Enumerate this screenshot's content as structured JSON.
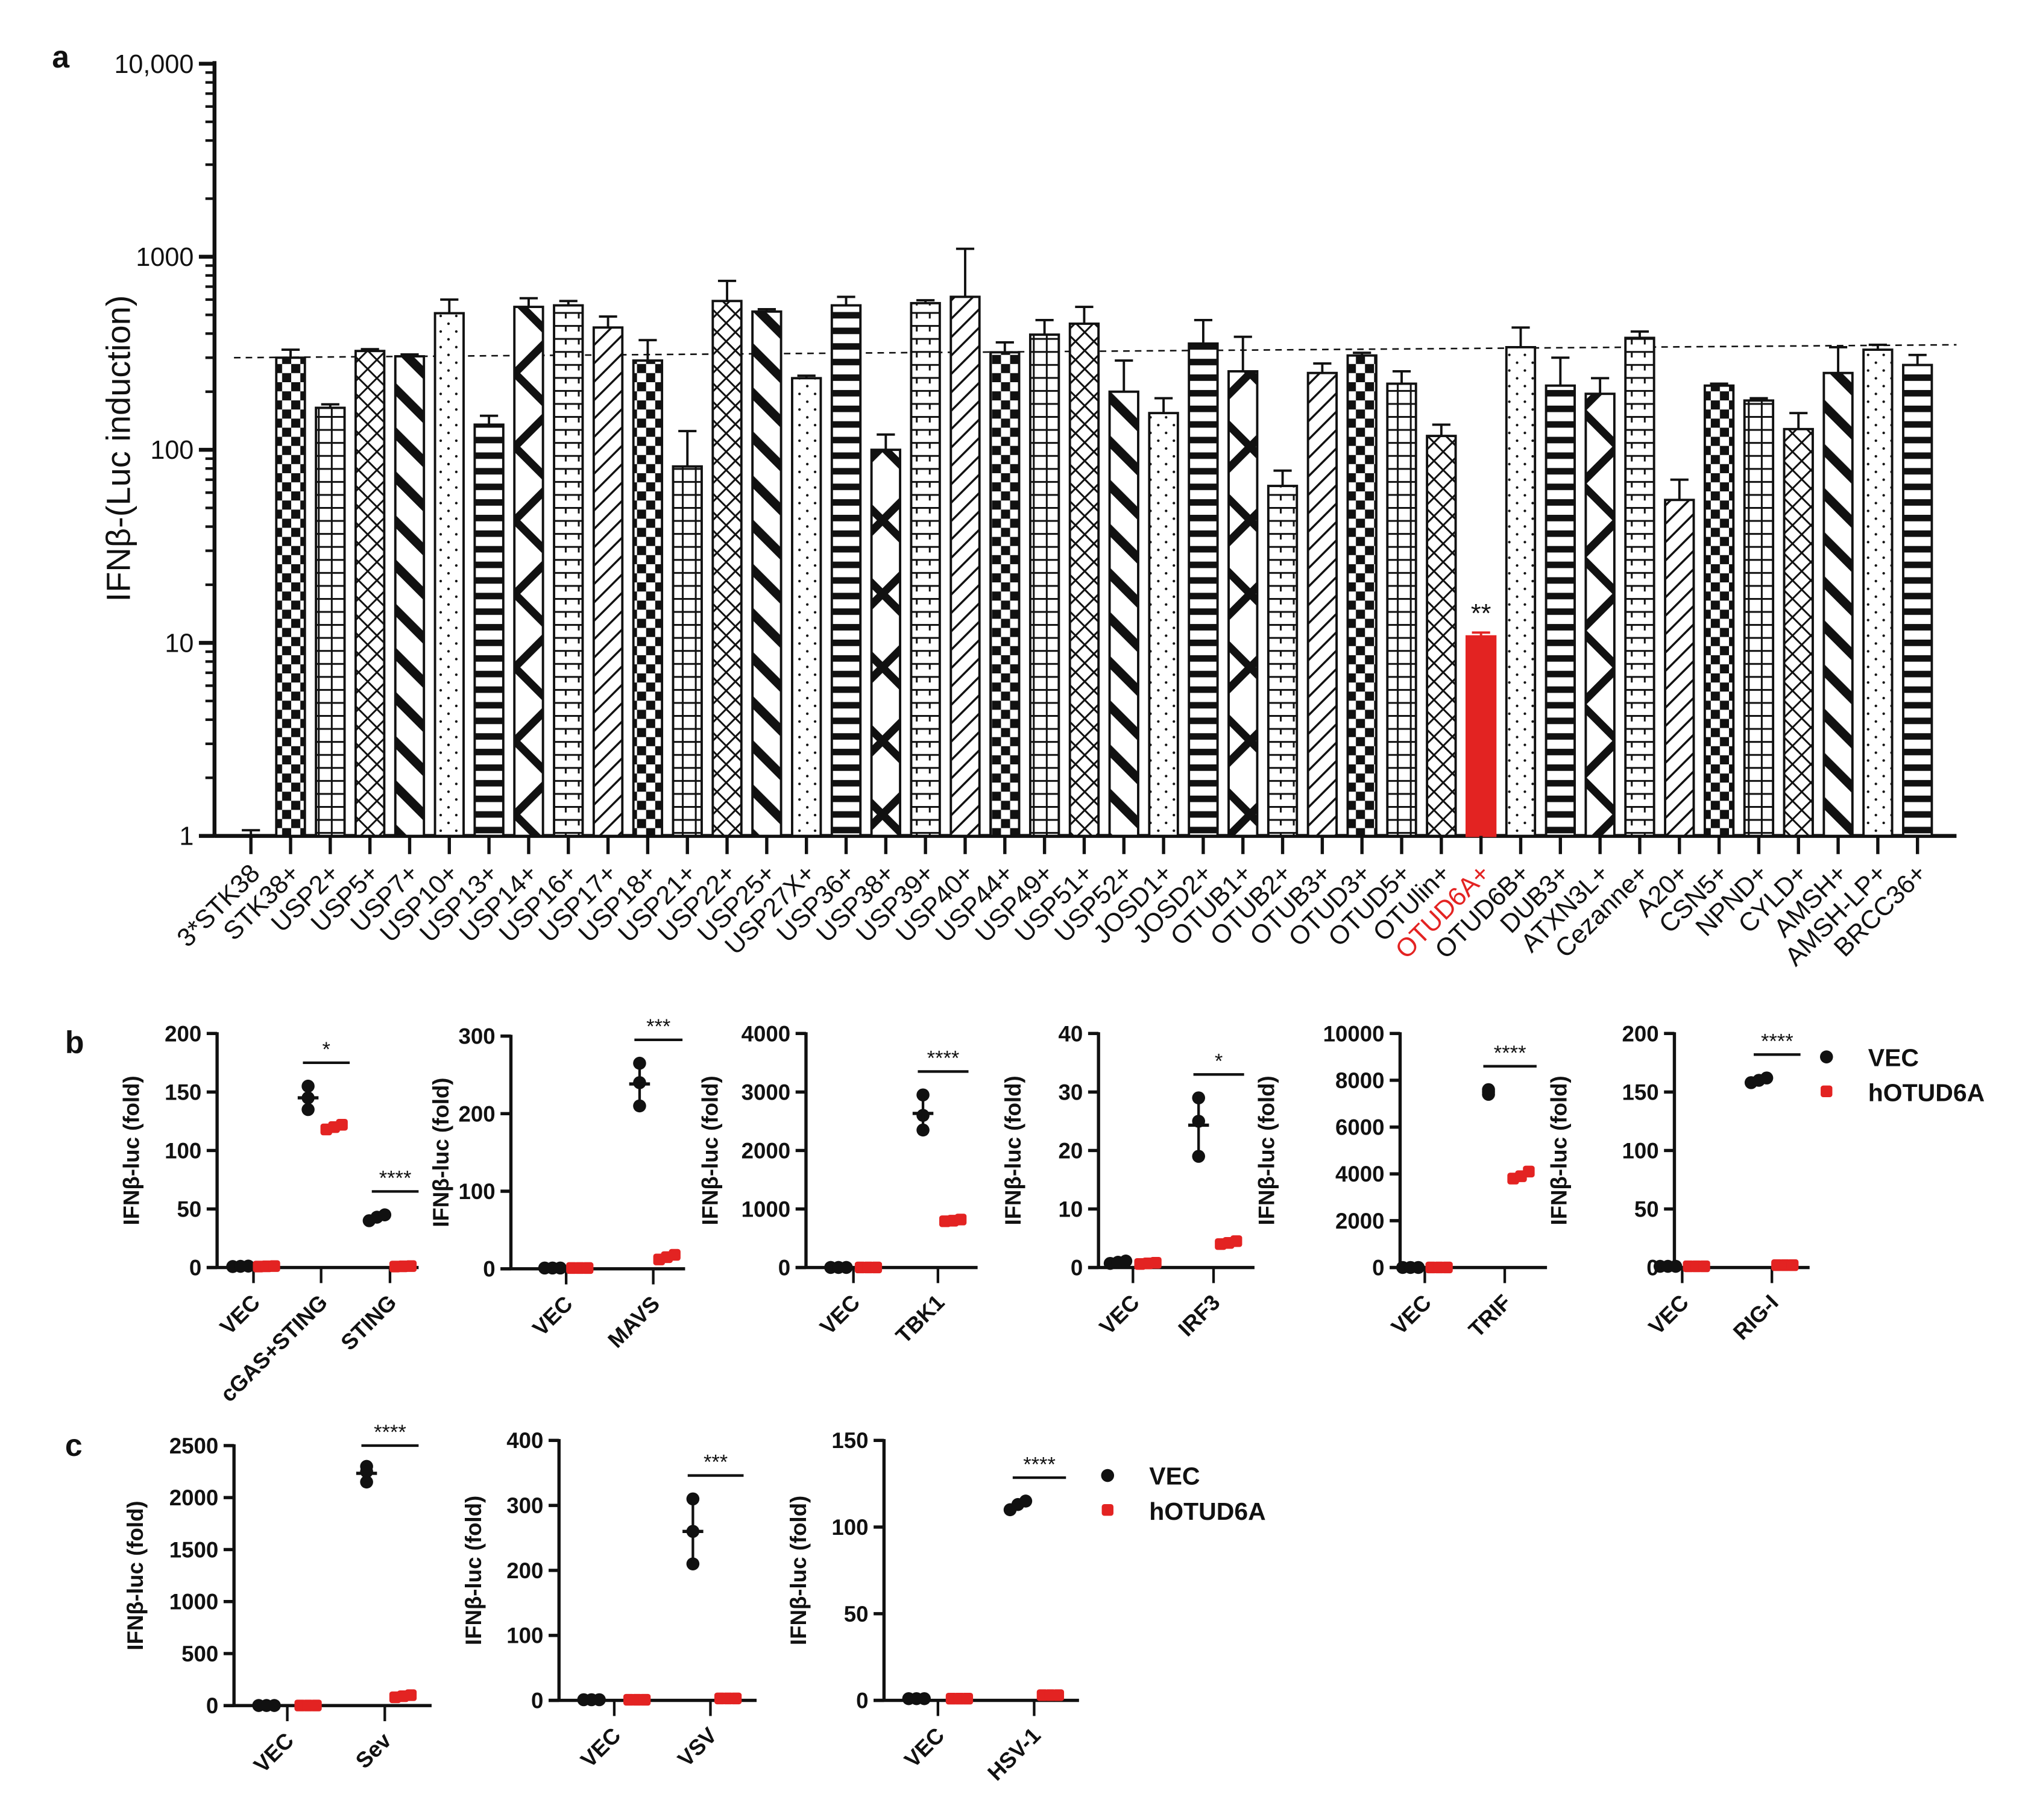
{
  "panel_labels": {
    "a": "a",
    "b": "b",
    "c": "c"
  },
  "chart_data": [
    {
      "id": "a",
      "type": "bar",
      "yscale": "log",
      "ylim": [
        1,
        10000
      ],
      "ylabel": "IFNβ-(Luc induction)",
      "ytick_values": [
        1,
        10,
        100,
        1000,
        10000
      ],
      "ytick_labels": [
        "1",
        "10",
        "100",
        "1000",
        "10,000"
      ],
      "categories": [
        "3*STK38",
        "STK38+",
        "USP2+",
        "USP5+",
        "USP7+",
        "USP10+",
        "USP13+",
        "USP14+",
        "USP16+",
        "USP17+",
        "USP18+",
        "USP21+",
        "USP22+",
        "USP25+",
        "USP27X+",
        "USP36+",
        "USP38+",
        "USP39+",
        "USP40+",
        "USP44+",
        "USP49+",
        "USP51+",
        "USP52+",
        "JOSD1+",
        "JOSD2+",
        "OTUB1+",
        "OTUB2+",
        "OTUB3+",
        "OTUD3+",
        "OTUD5+",
        "OTUlin+",
        "OTUD6A+",
        "OTUD6B+",
        "DUB3+",
        "ATXN3L+",
        "Cezanne+",
        "A20+",
        "CSN5+",
        "NPND+",
        "CYLD+",
        "AMSH+",
        "AMSH-LP+",
        "BRCC36+"
      ],
      "values": [
        1,
        300,
        165,
        325,
        305,
        510,
        135,
        550,
        560,
        430,
        290,
        82,
        590,
        520,
        235,
        560,
        100,
        575,
        620,
        320,
        395,
        450,
        200,
        155,
        355,
        255,
        65,
        250,
        308,
        220,
        118,
        10.8,
        340,
        215,
        195,
        380,
        55,
        215,
        180,
        128,
        250,
        330,
        275
      ],
      "error_upper": [
        1.07,
        330,
        172,
        332,
        312,
        600,
        150,
        610,
        590,
        490,
        370,
        125,
        750,
        535,
        242,
        620,
        120,
        595,
        1100,
        360,
        470,
        550,
        290,
        185,
        470,
        385,
        78,
        280,
        318,
        255,
        135,
        11.3,
        430,
        300,
        235,
        410,
        70,
        220,
        185,
        155,
        340,
        350,
        310
      ],
      "highlight_category": "OTUD6A+",
      "highlight_color": "#e32322",
      "annotations": [
        {
          "category": "OTUD6A+",
          "text": "**"
        }
      ],
      "reference_line": {
        "style": "dashed",
        "from_value": 300,
        "to_value": 350
      }
    },
    {
      "id": "b1",
      "type": "scatter",
      "ylabel": "IFNβ-luc (fold)",
      "ylim": [
        0,
        200
      ],
      "ytick_labels": [
        "0",
        "50",
        "100",
        "150",
        "200"
      ],
      "ytick_values": [
        0,
        50,
        100,
        150,
        200
      ],
      "groups": [
        {
          "label": "VEC",
          "VEC": [
            0.8,
            1,
            1.2
          ],
          "hOTUD6A": [
            0.8,
            1,
            1.2
          ],
          "sig": ""
        },
        {
          "label": "cGAS+STING",
          "VEC": [
            135,
            145,
            155
          ],
          "hOTUD6A": [
            118,
            120,
            122
          ],
          "sig": "*"
        },
        {
          "label": "STING",
          "VEC": [
            40,
            43,
            45
          ],
          "hOTUD6A": [
            0.8,
            1,
            1.2
          ],
          "sig": "****"
        }
      ]
    },
    {
      "id": "b2",
      "type": "scatter",
      "ylabel": "IFNβ-luc (fold)",
      "ylim": [
        0,
        300
      ],
      "ytick_labels": [
        "0",
        "100",
        "200",
        "300"
      ],
      "ytick_values": [
        0,
        100,
        200,
        300
      ],
      "groups": [
        {
          "label": "VEC",
          "VEC": [
            1,
            1,
            1
          ],
          "hOTUD6A": [
            1,
            1,
            1
          ],
          "sig": ""
        },
        {
          "label": "MAVS",
          "VEC": [
            210,
            240,
            265
          ],
          "hOTUD6A": [
            12,
            15,
            18
          ],
          "sig": "***"
        }
      ]
    },
    {
      "id": "b3",
      "type": "scatter",
      "ylabel": "IFNβ-luc (fold)",
      "ylim": [
        0,
        4000
      ],
      "ytick_labels": [
        "0",
        "1000",
        "2000",
        "3000",
        "4000"
      ],
      "ytick_values": [
        0,
        1000,
        2000,
        3000,
        4000
      ],
      "groups": [
        {
          "label": "VEC",
          "VEC": [
            1,
            1,
            1
          ],
          "hOTUD6A": [
            1,
            1,
            1
          ],
          "sig": ""
        },
        {
          "label": "TBK1",
          "VEC": [
            2350,
            2600,
            2950
          ],
          "hOTUD6A": [
            790,
            800,
            820
          ],
          "sig": "****"
        }
      ]
    },
    {
      "id": "b4",
      "type": "scatter",
      "ylabel": "IFNβ-luc (fold)",
      "ylim": [
        0,
        40
      ],
      "ytick_labels": [
        "0",
        "10",
        "20",
        "30",
        "40"
      ],
      "ytick_values": [
        0,
        10,
        20,
        30,
        40
      ],
      "groups": [
        {
          "label": "VEC",
          "VEC": [
            0.7,
            0.9,
            1.1
          ],
          "hOTUD6A": [
            0.6,
            0.7,
            0.8
          ],
          "sig": ""
        },
        {
          "label": "IRF3",
          "VEC": [
            19,
            25,
            29
          ],
          "hOTUD6A": [
            4,
            4.2,
            4.5
          ],
          "sig": "*"
        }
      ]
    },
    {
      "id": "b5",
      "type": "scatter",
      "ylabel": "IFNβ-luc (fold)",
      "ylim": [
        0,
        10000
      ],
      "ytick_labels": [
        "0",
        "2000",
        "4000",
        "6000",
        "8000",
        "10000"
      ],
      "ytick_values": [
        0,
        2000,
        4000,
        6000,
        8000,
        10000
      ],
      "groups": [
        {
          "label": "VEC",
          "VEC": [
            1,
            1,
            1
          ],
          "hOTUD6A": [
            1,
            1,
            1
          ],
          "sig": ""
        },
        {
          "label": "TRIF",
          "VEC": [
            7400,
            7500,
            7600
          ],
          "hOTUD6A": [
            3800,
            3900,
            4100
          ],
          "sig": "****"
        }
      ]
    },
    {
      "id": "b6",
      "type": "scatter",
      "ylabel": "IFNβ-luc (fold)",
      "ylim": [
        0,
        200
      ],
      "ytick_labels": [
        "0",
        "50",
        "100",
        "150",
        "200"
      ],
      "ytick_values": [
        0,
        50,
        100,
        150,
        200
      ],
      "groups": [
        {
          "label": "VEC",
          "VEC": [
            1,
            1,
            1
          ],
          "hOTUD6A": [
            1,
            1,
            1
          ],
          "sig": ""
        },
        {
          "label": "RIG-I",
          "VEC": [
            158,
            160,
            162
          ],
          "hOTUD6A": [
            2,
            2,
            2
          ],
          "sig": "****"
        }
      ],
      "legend": {
        "entries": [
          "VEC",
          "hOTUD6A"
        ],
        "placement": "right"
      }
    },
    {
      "id": "c1",
      "type": "scatter",
      "ylabel": "IFNβ-luc (fold)",
      "ylim": [
        0,
        2500
      ],
      "ytick_labels": [
        "0",
        "500",
        "1000",
        "1500",
        "2000",
        "2500"
      ],
      "ytick_values": [
        0,
        500,
        1000,
        1500,
        2000,
        2500
      ],
      "groups": [
        {
          "label": "VEC",
          "VEC": [
            1,
            1,
            1
          ],
          "hOTUD6A": [
            1,
            1,
            1
          ],
          "sig": ""
        },
        {
          "label": "Sev",
          "VEC": [
            2150,
            2250,
            2300
          ],
          "hOTUD6A": [
            80,
            90,
            100
          ],
          "sig": "****"
        }
      ]
    },
    {
      "id": "c2",
      "type": "scatter",
      "ylabel": "IFNβ-luc (fold)",
      "ylim": [
        0,
        400
      ],
      "ytick_labels": [
        "0",
        "100",
        "200",
        "300",
        "400"
      ],
      "ytick_values": [
        0,
        100,
        200,
        300,
        400
      ],
      "groups": [
        {
          "label": "VEC",
          "VEC": [
            1,
            1,
            1
          ],
          "hOTUD6A": [
            1,
            1,
            1
          ],
          "sig": ""
        },
        {
          "label": "VSV",
          "VEC": [
            210,
            260,
            310
          ],
          "hOTUD6A": [
            3,
            3,
            3
          ],
          "sig": "***"
        }
      ]
    },
    {
      "id": "c3",
      "type": "scatter",
      "ylabel": "IFNβ-luc (fold)",
      "ylim": [
        0,
        150
      ],
      "ytick_labels": [
        "0",
        "50",
        "100",
        "150"
      ],
      "ytick_values": [
        0,
        50,
        100,
        150
      ],
      "groups": [
        {
          "label": "VEC",
          "VEC": [
            1,
            1,
            1
          ],
          "hOTUD6A": [
            1,
            1,
            1
          ],
          "sig": ""
        },
        {
          "label": "HSV-1",
          "VEC": [
            110,
            113,
            115
          ],
          "hOTUD6A": [
            3,
            3,
            3
          ],
          "sig": "****"
        }
      ],
      "legend": {
        "entries": [
          "VEC",
          "hOTUD6A"
        ],
        "placement": "right"
      }
    }
  ],
  "colors": {
    "VEC": "#111111",
    "hOTUD6A": "#e32322"
  }
}
